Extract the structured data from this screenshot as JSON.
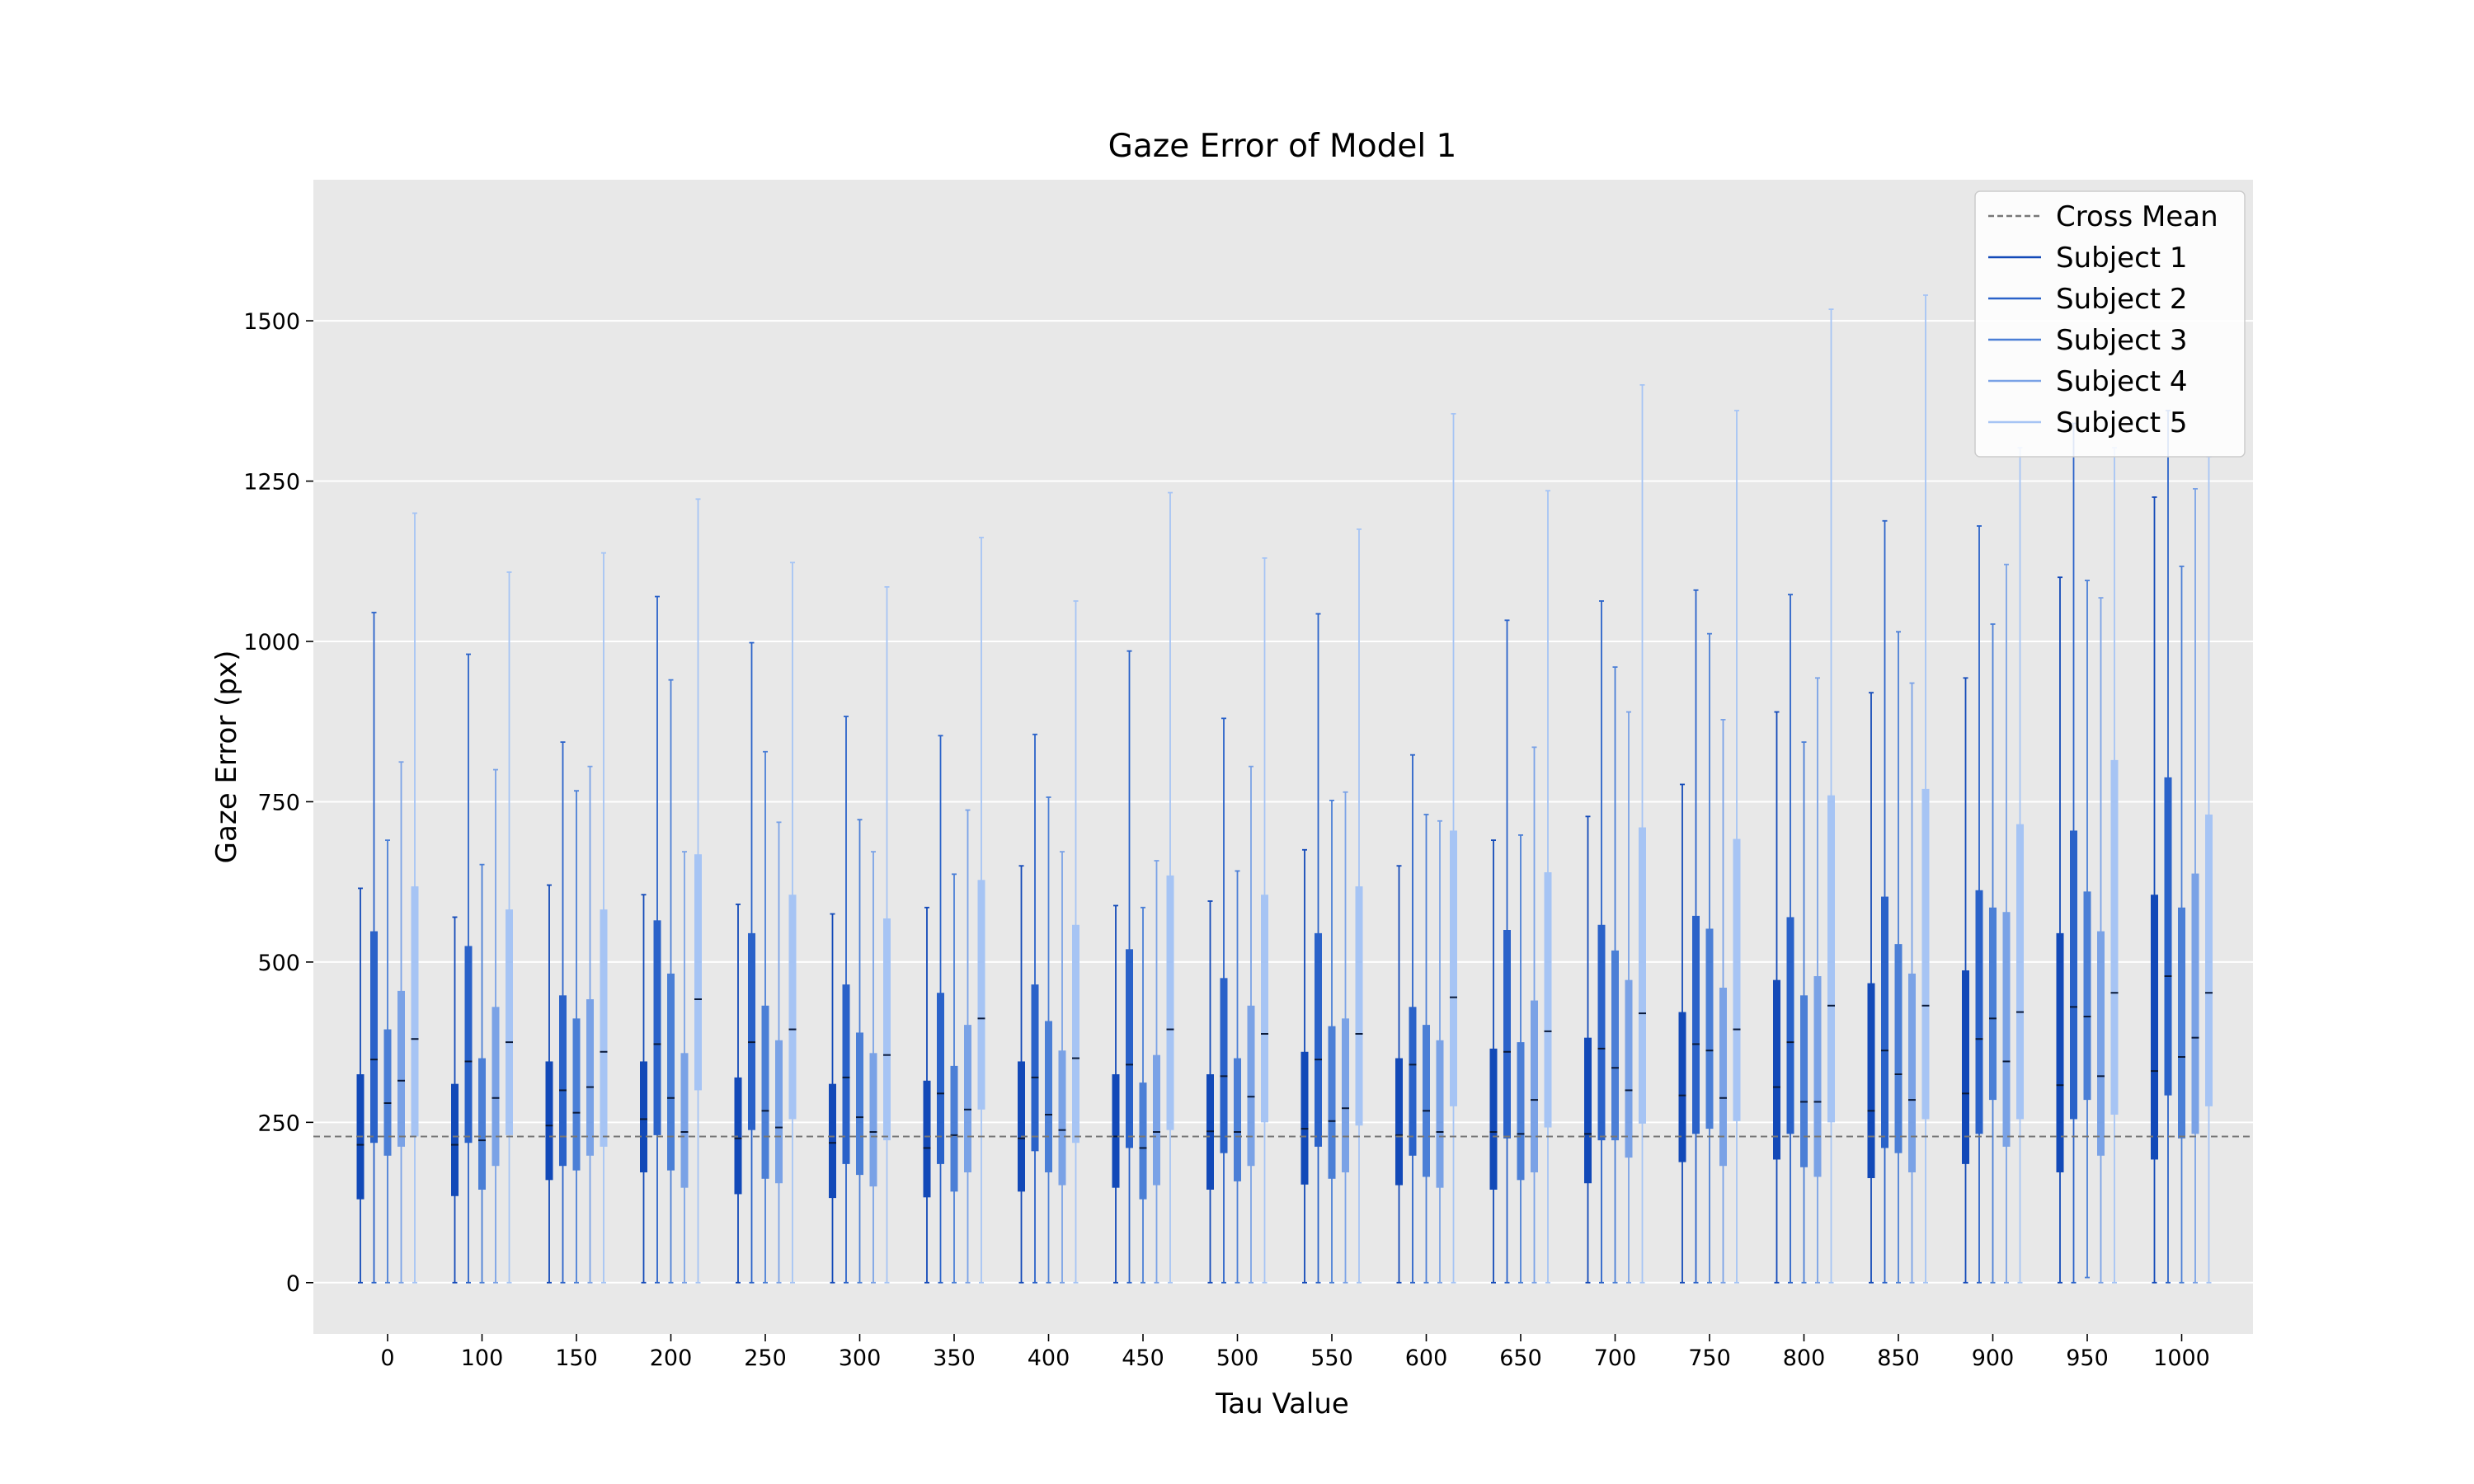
{
  "chart_data": {
    "type": "box",
    "title": "Gaze Error of Model 1",
    "xlabel": "Tau Value",
    "ylabel": "Gaze Error (px)",
    "categories": [
      "0",
      "100",
      "150",
      "200",
      "250",
      "300",
      "350",
      "400",
      "450",
      "500",
      "550",
      "600",
      "650",
      "700",
      "750",
      "800",
      "850",
      "900",
      "950",
      "1000"
    ],
    "ylim": [
      -80,
      1720
    ],
    "yticks": [
      0,
      250,
      500,
      750,
      1000,
      1250,
      1500
    ],
    "grid": true,
    "legend_position": "top-right",
    "reference_line": {
      "name": "Cross Mean",
      "value": 228,
      "style": "dashed",
      "color": "#777777"
    },
    "series": [
      {
        "name": "Subject 1",
        "color": "#1249b8",
        "q1": [
          130,
          135,
          160,
          172,
          138,
          132,
          133,
          142,
          148,
          145,
          153,
          152,
          145,
          155,
          188,
          192,
          163,
          185,
          172,
          192
        ],
        "median": [
          215,
          215,
          245,
          255,
          225,
          218,
          210,
          225,
          228,
          236,
          240,
          230,
          235,
          232,
          292,
          305,
          268,
          295,
          308,
          330
        ],
        "q3": [
          325,
          310,
          345,
          345,
          320,
          310,
          315,
          345,
          325,
          325,
          360,
          350,
          365,
          382,
          422,
          472,
          467,
          487,
          545,
          605
        ],
        "whisker_low": [
          0,
          0,
          0,
          0,
          0,
          0,
          0,
          0,
          0,
          0,
          0,
          0,
          0,
          0,
          0,
          0,
          0,
          0,
          0,
          0
        ],
        "whisker_high": [
          615,
          570,
          620,
          605,
          590,
          575,
          585,
          650,
          588,
          595,
          675,
          650,
          690,
          727,
          777,
          890,
          920,
          943,
          1100,
          1225
        ]
      },
      {
        "name": "Subject 2",
        "color": "#2a62c9",
        "q1": [
          218,
          218,
          182,
          230,
          238,
          185,
          185,
          205,
          210,
          202,
          212,
          198,
          225,
          222,
          232,
          232,
          210,
          232,
          255,
          292
        ],
        "median": [
          348,
          345,
          300,
          372,
          375,
          320,
          295,
          320,
          340,
          322,
          348,
          340,
          360,
          365,
          372,
          375,
          362,
          380,
          430,
          478
        ],
        "q3": [
          548,
          525,
          448,
          565,
          545,
          465,
          452,
          465,
          520,
          475,
          545,
          430,
          550,
          558,
          572,
          570,
          602,
          612,
          705,
          788
        ],
        "whisker_low": [
          0,
          0,
          0,
          0,
          0,
          0,
          0,
          0,
          0,
          0,
          0,
          0,
          0,
          0,
          0,
          0,
          0,
          0,
          0,
          0
        ],
        "whisker_high": [
          1045,
          980,
          843,
          1070,
          998,
          883,
          853,
          855,
          985,
          880,
          1043,
          823,
          1033,
          1063,
          1080,
          1073,
          1188,
          1180,
          1340,
          1360
        ]
      },
      {
        "name": "Subject 3",
        "color": "#4b7fd6",
        "q1": [
          198,
          145,
          175,
          175,
          162,
          168,
          142,
          172,
          130,
          158,
          162,
          165,
          160,
          222,
          240,
          180,
          202,
          285,
          285,
          225
        ],
        "median": [
          280,
          222,
          265,
          288,
          268,
          258,
          230,
          262,
          210,
          235,
          252,
          268,
          232,
          335,
          362,
          282,
          325,
          412,
          415,
          352
        ],
        "q3": [
          395,
          350,
          412,
          482,
          432,
          390,
          338,
          408,
          312,
          350,
          400,
          402,
          375,
          518,
          552,
          448,
          528,
          585,
          610,
          585
        ],
        "whisker_low": [
          0,
          0,
          0,
          0,
          0,
          0,
          0,
          0,
          0,
          0,
          0,
          0,
          0,
          0,
          0,
          0,
          0,
          0,
          8,
          0
        ],
        "whisker_high": [
          690,
          652,
          767,
          940,
          828,
          722,
          637,
          757,
          585,
          642,
          752,
          730,
          698,
          960,
          1012,
          843,
          1015,
          1027,
          1095,
          1117
        ]
      },
      {
        "name": "Subject 4",
        "color": "#7aa2e6",
        "q1": [
          212,
          182,
          198,
          148,
          155,
          150,
          172,
          152,
          152,
          182,
          172,
          148,
          172,
          195,
          182,
          165,
          172,
          212,
          198,
          232
        ],
        "median": [
          315,
          288,
          305,
          235,
          242,
          235,
          270,
          238,
          235,
          290,
          272,
          235,
          285,
          300,
          288,
          282,
          285,
          345,
          322,
          382
        ],
        "q3": [
          455,
          430,
          442,
          358,
          378,
          358,
          402,
          362,
          355,
          432,
          412,
          378,
          440,
          472,
          460,
          478,
          482,
          578,
          548,
          638
        ],
        "whisker_low": [
          0,
          0,
          0,
          0,
          0,
          0,
          0,
          0,
          0,
          0,
          0,
          0,
          0,
          0,
          0,
          0,
          0,
          0,
          0,
          0
        ],
        "whisker_high": [
          812,
          800,
          805,
          672,
          718,
          672,
          737,
          672,
          658,
          805,
          765,
          720,
          835,
          890,
          878,
          943,
          935,
          1120,
          1068,
          1238
        ]
      },
      {
        "name": "Subject 5",
        "color": "#a6c4f4",
        "q1": [
          228,
          230,
          212,
          300,
          255,
          222,
          270,
          218,
          238,
          250,
          245,
          275,
          242,
          248,
          252,
          250,
          255,
          255,
          262,
          275
        ],
        "median": [
          380,
          375,
          360,
          442,
          395,
          355,
          412,
          350,
          395,
          388,
          388,
          445,
          392,
          420,
          395,
          432,
          432,
          422,
          452,
          452
        ],
        "q3": [
          618,
          582,
          582,
          668,
          605,
          568,
          628,
          558,
          635,
          605,
          618,
          705,
          640,
          710,
          692,
          760,
          770,
          715,
          815,
          730
        ],
        "whisker_low": [
          0,
          0,
          0,
          0,
          0,
          0,
          0,
          0,
          0,
          0,
          0,
          0,
          0,
          0,
          0,
          0,
          0,
          0,
          0,
          0
        ],
        "whisker_high": [
          1200,
          1108,
          1138,
          1222,
          1123,
          1085,
          1162,
          1063,
          1232,
          1130,
          1175,
          1355,
          1235,
          1400,
          1360,
          1518,
          1540,
          1302,
          1302,
          1288
        ]
      }
    ]
  }
}
